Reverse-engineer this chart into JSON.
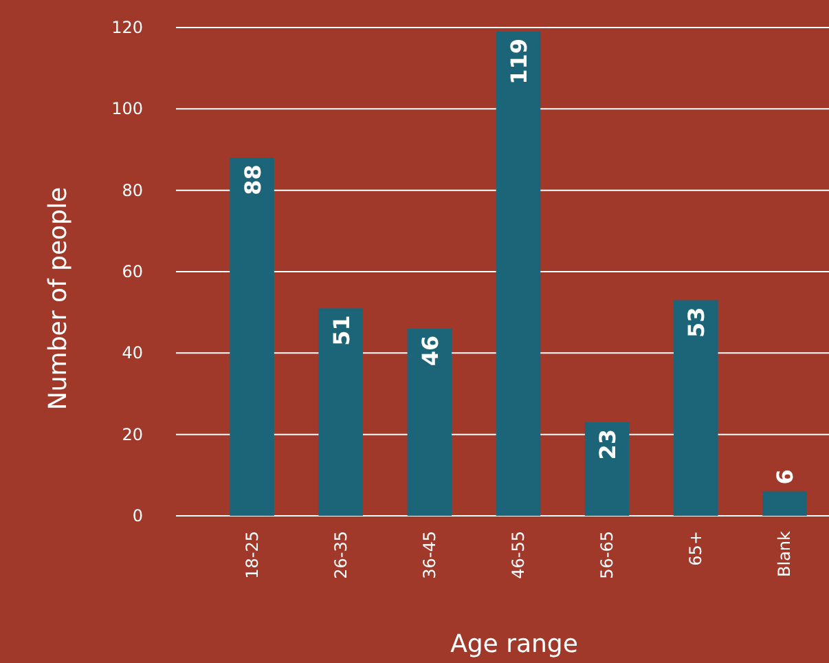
{
  "chart_data": {
    "type": "bar",
    "xlabel": "Age range",
    "ylabel": "Number of people",
    "categories": [
      "18-25",
      "26-35",
      "36-45",
      "46-55",
      "56-65",
      "65+",
      "Blank"
    ],
    "values": [
      88,
      51,
      46,
      119,
      23,
      53,
      6
    ],
    "color": "#1c6579",
    "ylim": [
      0,
      120
    ],
    "yticks": [
      0,
      20,
      40,
      60,
      80,
      100,
      120
    ],
    "grid": "y",
    "data_labels": true
  }
}
